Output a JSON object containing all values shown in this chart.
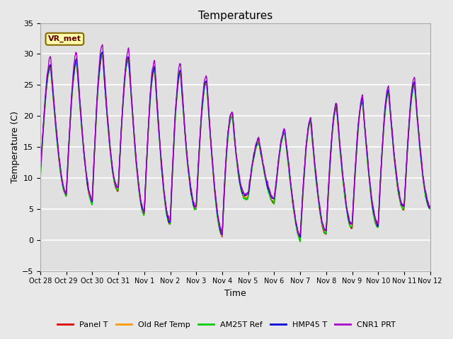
{
  "title": "Temperatures",
  "ylabel": "Temperature (C)",
  "xlabel": "Time",
  "ylim": [
    -5,
    35
  ],
  "annotation": "VR_met",
  "fig_bg_color": "#e8e8e8",
  "plot_bg_color": "#e0e0e0",
  "grid_color": "#cccccc",
  "line_colors": {
    "Panel T": "#dd0000",
    "Old Ref Temp": "#ff9900",
    "AM25T Ref": "#00cc00",
    "HMP45 T": "#0000dd",
    "CNR1 PRT": "#aa00cc"
  },
  "line_width": 1.0,
  "xtick_labels": [
    "Oct 28",
    "Oct 29",
    "Oct 30",
    "Oct 31",
    "Nov 1",
    "Nov 2",
    "Nov 3",
    "Nov 4",
    "Nov 5",
    "Nov 6",
    "Nov 7",
    "Nov 8",
    "Nov 9",
    "Nov 10",
    "Nov 11",
    "Nov 12"
  ],
  "day_peaks": [
    28,
    28,
    30,
    30,
    28,
    27,
    27,
    23,
    15,
    17,
    18,
    21,
    22,
    23,
    25,
    25
  ],
  "day_troughs": [
    10,
    7,
    6,
    8,
    4,
    2.5,
    5,
    0.5,
    7,
    6,
    0,
    1,
    2,
    2,
    5,
    5
  ],
  "num_days": 15,
  "samples_per_day": 96
}
